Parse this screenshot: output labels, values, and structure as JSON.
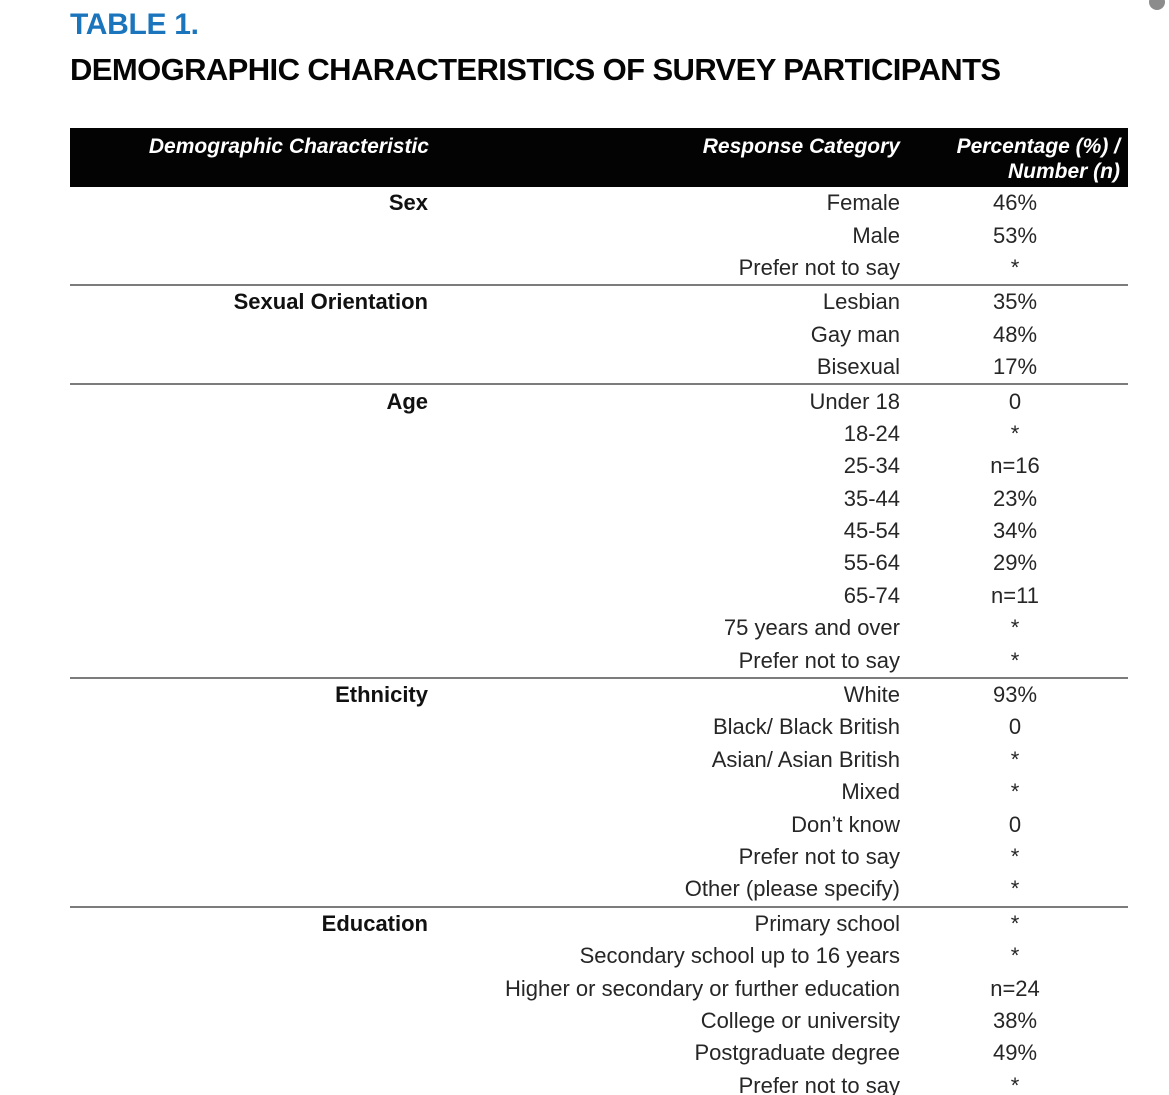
{
  "page": {
    "table_label": "TABLE 1.",
    "title": "DEMOGRAPHIC CHARACTERISTICS OF SURVEY PARTICIPANTS",
    "accent_color": "#1b75bc",
    "header_bg_color": "#030303",
    "separator_color": "#7c7c7c"
  },
  "table": {
    "header": {
      "characteristic": "Demographic Characteristic",
      "response_category": "Response Category",
      "percentage": "Percentage (%) / Number (n)"
    },
    "sections": [
      {
        "characteristic": "Sex",
        "rows": [
          {
            "category": "Female",
            "value": "46%"
          },
          {
            "category": "Male",
            "value": "53%"
          },
          {
            "category": "Prefer not to say",
            "value": "*"
          }
        ]
      },
      {
        "characteristic": "Sexual Orientation",
        "rows": [
          {
            "category": "Lesbian",
            "value": "35%"
          },
          {
            "category": "Gay man",
            "value": "48%"
          },
          {
            "category": "Bisexual",
            "value": "17%"
          }
        ]
      },
      {
        "characteristic": "Age",
        "rows": [
          {
            "category": "Under 18",
            "value": "0"
          },
          {
            "category": "18-24",
            "value": "*"
          },
          {
            "category": "25-34",
            "value": "n=16"
          },
          {
            "category": "35-44",
            "value": "23%"
          },
          {
            "category": "45-54",
            "value": "34%"
          },
          {
            "category": "55-64",
            "value": "29%"
          },
          {
            "category": "65-74",
            "value": "n=11"
          },
          {
            "category": "75 years and over",
            "value": "*"
          },
          {
            "category": "Prefer not to say",
            "value": "*"
          }
        ]
      },
      {
        "characteristic": "Ethnicity",
        "rows": [
          {
            "category": "White",
            "value": "93%"
          },
          {
            "category": "Black/ Black British",
            "value": "0"
          },
          {
            "category": "Asian/ Asian British",
            "value": "*"
          },
          {
            "category": "Mixed",
            "value": "*"
          },
          {
            "category": "Don’t know",
            "value": "0"
          },
          {
            "category": "Prefer not to say",
            "value": "*"
          },
          {
            "category": "Other (please specify)",
            "value": "*"
          }
        ]
      },
      {
        "characteristic": "Education",
        "rows": [
          {
            "category": "Primary school",
            "value": "*"
          },
          {
            "category": "Secondary school up to 16 years",
            "value": "*"
          },
          {
            "category": "Higher or secondary or further education",
            "value": "n=24"
          },
          {
            "category": "College or university",
            "value": "38%"
          },
          {
            "category": "Postgraduate degree",
            "value": "49%"
          },
          {
            "category": "Prefer not to say",
            "value": "*"
          }
        ]
      }
    ]
  }
}
